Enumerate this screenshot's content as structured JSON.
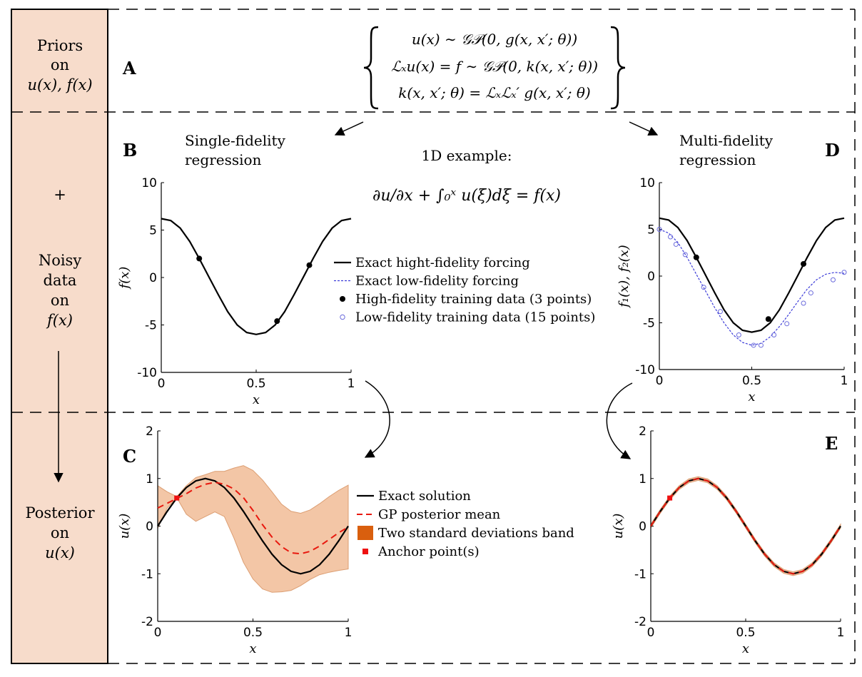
{
  "sidebar": {
    "priors_title": "Priors",
    "priors_on": "on",
    "priors_vars": "u(x), f(x)",
    "plus": "+",
    "noisy": "Noisy",
    "data": "data",
    "data_on": "on",
    "data_var": "f(x)",
    "posterior": "Posterior",
    "posterior_on": "on",
    "posterior_var": "u(x)"
  },
  "panel_letters": {
    "a": "A",
    "b": "B",
    "c": "C",
    "d": "D",
    "e": "E"
  },
  "equations": {
    "line1": "u(x) ∼ 𝒢𝒫(0, g(x, x′; θ))",
    "line2": "ℒₓu(x) = f ∼ 𝒢𝒫(0, k(x, x′; θ))",
    "line3": "k(x, x′; θ) = ℒₓℒₓ′ g(x, x′; θ)"
  },
  "example": {
    "title": "1D example:",
    "equation": "∂u/∂x + ∫₀ˣ u(ξ)dξ = f(x)"
  },
  "regression_titles": {
    "single_1": "Single-fidelity",
    "single_2": "regression",
    "multi_1": "Multi-fidelity",
    "multi_2": "regression"
  },
  "legend_top": [
    {
      "label": "Exact hight-fidelity forcing",
      "marker": "solid-line",
      "color": "#000000"
    },
    {
      "label": "Exact low-fidelity forcing",
      "marker": "dotted-line",
      "color": "#3b3bd8"
    },
    {
      "label": "High-fidelity training data (3 points)",
      "marker": "filled-circle",
      "color": "#000000"
    },
    {
      "label": "Low-fidelity training data (15 points)",
      "marker": "open-circle",
      "color": "#6b6bdc"
    }
  ],
  "legend_bottom": [
    {
      "label": "Exact solution",
      "marker": "solid-line",
      "color": "#000000"
    },
    {
      "label": "GP posterior mean",
      "marker": "dashed-line",
      "color": "#e8190f"
    },
    {
      "label": "Two standard deviations band",
      "marker": "filled-square",
      "color": "#d95f0e"
    },
    {
      "label": "Anchor point(s)",
      "marker": "small-square",
      "color": "#ee1111"
    }
  ],
  "colors": {
    "sidebar_fill": "#f7dccb",
    "band_fill": "#f3c6a6",
    "band_edge": "#dc9e72",
    "posterior_mean": "#e8190f",
    "low_fidelity": "#3b3bd8",
    "anchor": "#ee1111"
  },
  "chart_data": [
    {
      "id": "B",
      "type": "line",
      "xlabel": "x",
      "ylabel": "f(x)",
      "xlim": [
        0,
        1
      ],
      "ylim": [
        -10,
        10
      ],
      "xticks": [
        0,
        0.5,
        1
      ],
      "xtick_labels": [
        "0",
        "0.5",
        "1"
      ],
      "yticks": [
        10,
        5,
        0,
        -5,
        -10
      ],
      "ytick_labels": [
        "10",
        "5",
        "0",
        "-5",
        "-10"
      ],
      "series": [
        {
          "kind": "line",
          "style": "solid",
          "color": "#000000",
          "x": [
            0,
            0.05,
            0.1,
            0.15,
            0.2,
            0.25,
            0.3,
            0.35,
            0.4,
            0.45,
            0.5,
            0.55,
            0.6,
            0.65,
            0.7,
            0.75,
            0.8,
            0.85,
            0.9,
            0.95,
            1
          ],
          "y": [
            6.2,
            6.0,
            5.2,
            3.8,
            2.0,
            0.1,
            -1.8,
            -3.6,
            -5.0,
            -5.8,
            -6.0,
            -5.8,
            -5.0,
            -3.6,
            -1.8,
            0.1,
            2.0,
            3.8,
            5.2,
            6.0,
            6.2
          ]
        },
        {
          "kind": "points",
          "marker": "filled-circle",
          "color": "#000000",
          "x": [
            0.2,
            0.61,
            0.78
          ],
          "y": [
            2.0,
            -4.6,
            1.3
          ]
        }
      ]
    },
    {
      "id": "D",
      "type": "line",
      "xlabel": "x",
      "ylabel": "f₁(x), f₂(x)",
      "xlim": [
        0,
        1
      ],
      "ylim": [
        -10,
        10
      ],
      "xticks": [
        0,
        0.5,
        1
      ],
      "xtick_labels": [
        "0",
        "0.5",
        "1"
      ],
      "yticks": [
        10,
        5,
        0,
        -5,
        -10
      ],
      "ytick_labels": [
        "10",
        "5",
        "0",
        "-5",
        "-10"
      ],
      "series": [
        {
          "kind": "line",
          "style": "solid",
          "color": "#000000",
          "x": [
            0,
            0.05,
            0.1,
            0.15,
            0.2,
            0.25,
            0.3,
            0.35,
            0.4,
            0.45,
            0.5,
            0.55,
            0.6,
            0.65,
            0.7,
            0.75,
            0.8,
            0.85,
            0.9,
            0.95,
            1
          ],
          "y": [
            6.2,
            6.0,
            5.2,
            3.8,
            2.0,
            0.1,
            -1.8,
            -3.6,
            -5.0,
            -5.8,
            -6.0,
            -5.8,
            -5.0,
            -3.6,
            -1.8,
            0.1,
            2.0,
            3.8,
            5.2,
            6.0,
            6.2
          ]
        },
        {
          "kind": "line",
          "style": "dotted",
          "color": "#3b3bd8",
          "x": [
            0,
            0.05,
            0.1,
            0.15,
            0.2,
            0.25,
            0.3,
            0.35,
            0.4,
            0.45,
            0.5,
            0.55,
            0.6,
            0.65,
            0.7,
            0.75,
            0.8,
            0.85,
            0.9,
            0.95,
            1
          ],
          "y": [
            5.0,
            4.6,
            3.6,
            2.0,
            0.2,
            -1.6,
            -3.4,
            -5.0,
            -6.3,
            -7.1,
            -7.4,
            -7.2,
            -6.5,
            -5.4,
            -4.1,
            -2.7,
            -1.4,
            -0.4,
            0.2,
            0.4,
            0.3
          ]
        },
        {
          "kind": "points",
          "marker": "open-circle",
          "color": "#6b6bdc",
          "x": [
            0.0,
            0.06,
            0.09,
            0.14,
            0.24,
            0.33,
            0.43,
            0.51,
            0.55,
            0.62,
            0.69,
            0.78,
            0.82,
            0.94,
            1.0
          ],
          "y": [
            5.0,
            4.2,
            3.4,
            2.3,
            -1.2,
            -3.8,
            -6.3,
            -7.4,
            -7.4,
            -6.3,
            -5.1,
            -2.9,
            -1.8,
            -0.4,
            0.4
          ]
        },
        {
          "kind": "points",
          "marker": "filled-circle",
          "color": "#000000",
          "x": [
            0.2,
            0.59,
            0.78
          ],
          "y": [
            2.0,
            -4.6,
            1.3
          ]
        }
      ]
    },
    {
      "id": "C",
      "type": "line",
      "xlabel": "x",
      "ylabel": "u(x)",
      "xlim": [
        0,
        1
      ],
      "ylim": [
        -2,
        2
      ],
      "xticks": [
        0,
        0.5,
        1
      ],
      "xtick_labels": [
        "0",
        "0.5",
        "1"
      ],
      "yticks": [
        2,
        1,
        0,
        -1,
        -2
      ],
      "ytick_labels": [
        "2",
        "1",
        "0",
        "-1",
        "-2"
      ],
      "band": {
        "x": [
          0,
          0.05,
          0.1,
          0.15,
          0.2,
          0.25,
          0.3,
          0.35,
          0.4,
          0.45,
          0.5,
          0.55,
          0.6,
          0.65,
          0.7,
          0.75,
          0.8,
          0.85,
          0.9,
          0.95,
          1
        ],
        "upper": [
          0.85,
          0.72,
          0.62,
          0.85,
          1.02,
          1.08,
          1.15,
          1.15,
          1.22,
          1.27,
          1.17,
          0.97,
          0.72,
          0.46,
          0.31,
          0.27,
          0.34,
          0.47,
          0.62,
          0.75,
          0.86
        ],
        "lower": [
          -0.05,
          0.38,
          0.6,
          0.25,
          0.1,
          0.2,
          0.3,
          0.2,
          -0.25,
          -0.76,
          -1.11,
          -1.32,
          -1.39,
          -1.38,
          -1.35,
          -1.25,
          -1.12,
          -1.02,
          -0.97,
          -0.93,
          -0.9
        ]
      },
      "series": [
        {
          "kind": "line",
          "style": "solid",
          "color": "#000000",
          "x": [
            0,
            0.05,
            0.1,
            0.15,
            0.2,
            0.25,
            0.3,
            0.35,
            0.4,
            0.45,
            0.5,
            0.55,
            0.6,
            0.65,
            0.7,
            0.75,
            0.8,
            0.85,
            0.9,
            0.95,
            1
          ],
          "y": [
            0,
            0.31,
            0.59,
            0.81,
            0.95,
            1.0,
            0.95,
            0.81,
            0.59,
            0.31,
            0,
            -0.31,
            -0.59,
            -0.81,
            -0.95,
            -1.0,
            -0.95,
            -0.81,
            -0.59,
            -0.31,
            0
          ]
        },
        {
          "kind": "line",
          "style": "dashed",
          "color": "#e8190f",
          "x": [
            0,
            0.05,
            0.1,
            0.15,
            0.2,
            0.25,
            0.3,
            0.35,
            0.4,
            0.45,
            0.5,
            0.55,
            0.6,
            0.65,
            0.7,
            0.75,
            0.8,
            0.85,
            0.9,
            0.95,
            1
          ],
          "y": [
            0.38,
            0.48,
            0.58,
            0.68,
            0.8,
            0.88,
            0.92,
            0.88,
            0.78,
            0.6,
            0.33,
            0.03,
            -0.23,
            -0.43,
            -0.56,
            -0.58,
            -0.53,
            -0.42,
            -0.28,
            -0.14,
            -0.02
          ]
        },
        {
          "kind": "points",
          "marker": "small-square",
          "color": "#ee1111",
          "x": [
            0.1
          ],
          "y": [
            0.59
          ]
        }
      ]
    },
    {
      "id": "E",
      "type": "line",
      "xlabel": "x",
      "ylabel": "u(x)",
      "xlim": [
        0,
        1
      ],
      "ylim": [
        -2,
        2
      ],
      "xticks": [
        0,
        0.5,
        1
      ],
      "xtick_labels": [
        "0",
        "0.5",
        "1"
      ],
      "yticks": [
        2,
        1,
        0,
        -1,
        -2
      ],
      "ytick_labels": [
        "2",
        "1",
        "0",
        "-1",
        "-2"
      ],
      "band": {
        "x": [
          0,
          0.05,
          0.1,
          0.15,
          0.2,
          0.25,
          0.3,
          0.35,
          0.4,
          0.45,
          0.5,
          0.55,
          0.6,
          0.65,
          0.7,
          0.75,
          0.8,
          0.85,
          0.9,
          0.95,
          1
        ],
        "upper": [
          0.04,
          0.35,
          0.63,
          0.85,
          0.99,
          1.04,
          0.99,
          0.85,
          0.63,
          0.35,
          0.04,
          -0.27,
          -0.55,
          -0.77,
          -0.91,
          -0.96,
          -0.91,
          -0.77,
          -0.55,
          -0.27,
          0.04
        ],
        "lower": [
          -0.04,
          0.27,
          0.55,
          0.77,
          0.91,
          0.96,
          0.91,
          0.77,
          0.55,
          0.27,
          -0.04,
          -0.35,
          -0.63,
          -0.85,
          -0.99,
          -1.04,
          -0.99,
          -0.85,
          -0.63,
          -0.35,
          -0.04
        ]
      },
      "series": [
        {
          "kind": "line",
          "style": "solid",
          "color": "#000000",
          "x": [
            0,
            0.05,
            0.1,
            0.15,
            0.2,
            0.25,
            0.3,
            0.35,
            0.4,
            0.45,
            0.5,
            0.55,
            0.6,
            0.65,
            0.7,
            0.75,
            0.8,
            0.85,
            0.9,
            0.95,
            1
          ],
          "y": [
            0,
            0.31,
            0.59,
            0.81,
            0.95,
            1.0,
            0.95,
            0.81,
            0.59,
            0.31,
            0,
            -0.31,
            -0.59,
            -0.81,
            -0.95,
            -1.0,
            -0.95,
            -0.81,
            -0.59,
            -0.31,
            0
          ]
        },
        {
          "kind": "line",
          "style": "dashed",
          "color": "#e8190f",
          "x": [
            0,
            0.05,
            0.1,
            0.15,
            0.2,
            0.25,
            0.3,
            0.35,
            0.4,
            0.45,
            0.5,
            0.55,
            0.6,
            0.65,
            0.7,
            0.75,
            0.8,
            0.85,
            0.9,
            0.95,
            1
          ],
          "y": [
            0,
            0.31,
            0.59,
            0.81,
            0.95,
            1.0,
            0.95,
            0.81,
            0.59,
            0.31,
            0,
            -0.31,
            -0.59,
            -0.81,
            -0.95,
            -1.0,
            -0.95,
            -0.81,
            -0.59,
            -0.31,
            0
          ]
        },
        {
          "kind": "points",
          "marker": "small-square",
          "color": "#ee1111",
          "x": [
            0.1
          ],
          "y": [
            0.59
          ]
        }
      ]
    }
  ]
}
